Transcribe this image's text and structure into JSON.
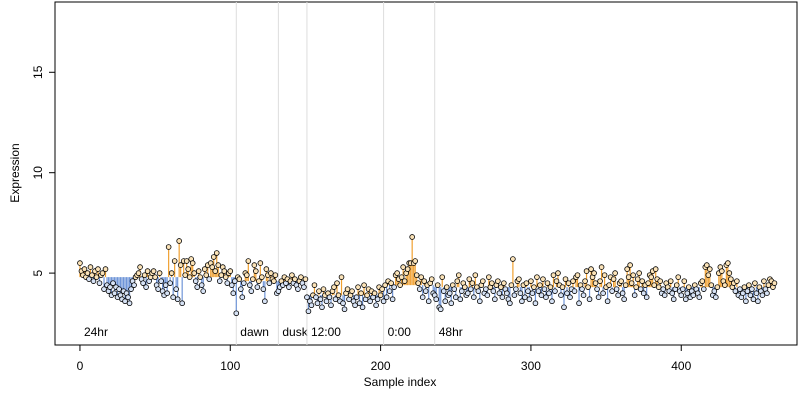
{
  "chart_data": {
    "type": "segmented-scatter",
    "x_label": "Sample index",
    "y_label": "Expression",
    "xlim": [
      -16.6,
      477
    ],
    "ylim": [
      1.42,
      18.5
    ],
    "xticks": [
      0,
      100,
      200,
      300,
      400
    ],
    "yticks": [
      5,
      10,
      15
    ],
    "above_color": "#f0a030",
    "below_color": "#6f95d8",
    "divider_color": "#dddddd",
    "groups": [
      {
        "label": "24hr",
        "start": 0,
        "level": 4.8
      },
      {
        "label": "dawn",
        "start": 104,
        "level": 4.6
      },
      {
        "label": "dusk",
        "start": 132,
        "level": 4.6
      },
      {
        "label": "12:00",
        "start": 151,
        "level": 3.9
      },
      {
        "label": "0:00",
        "start": 202,
        "level": 4.4
      },
      {
        "label": "48hr",
        "start": 236,
        "level": 4.3
      }
    ],
    "values": [
      5.5,
      5.1,
      4.9,
      5.2,
      4.8,
      5.0,
      4.7,
      5.3,
      4.9,
      4.6,
      5.1,
      4.8,
      5.2,
      4.5,
      4.9,
      5.0,
      4.2,
      5.2,
      4.4,
      4.1,
      4.3,
      3.9,
      4.5,
      4.0,
      4.3,
      3.8,
      4.2,
      3.9,
      3.7,
      4.1,
      3.6,
      4.0,
      3.8,
      3.5,
      4.2,
      4.6,
      4.4,
      4.8,
      4.9,
      5.0,
      5.3,
      4.7,
      4.5,
      4.9,
      4.3,
      5.1,
      4.6,
      4.8,
      5.0,
      5.1,
      4.8,
      4.4,
      4.2,
      5.0,
      4.6,
      4.1,
      3.9,
      4.4,
      4.0,
      6.3,
      4.5,
      5.0,
      3.8,
      5.6,
      4.2,
      3.7,
      6.6,
      5.4,
      3.5,
      5.6,
      4.9,
      5.6,
      5.2,
      4.8,
      5.7,
      5.5,
      5.0,
      4.6,
      4.3,
      5.1,
      4.8,
      4.4,
      4.1,
      5.2,
      4.9,
      5.4,
      4.7,
      5.5,
      5.3,
      5.8,
      5.1,
      6.0,
      5.4,
      4.6,
      4.9,
      5.3,
      5.1,
      4.8,
      4.5,
      5.0,
      5.1,
      4.4,
      4.0,
      4.6,
      3.0,
      4.8,
      4.7,
      4.2,
      3.8,
      4.5,
      5.0,
      4.9,
      5.6,
      4.4,
      4.1,
      4.7,
      5.4,
      5.1,
      4.3,
      4.6,
      5.5,
      4.8,
      4.2,
      3.6,
      5.2,
      4.9,
      4.5,
      5.0,
      4.7,
      4.6,
      4.9,
      4.0,
      4.1,
      4.3,
      4.6,
      4.4,
      4.8,
      4.5,
      4.7,
      4.3,
      4.6,
      4.9,
      4.5,
      4.7,
      4.4,
      4.2,
      4.6,
      4.8,
      4.5,
      4.3,
      4.7,
      3.8,
      3.1,
      3.6,
      3.4,
      3.9,
      4.4,
      3.8,
      3.5,
      4.1,
      3.7,
      3.3,
      4.2,
      3.9,
      3.6,
      4.0,
      3.8,
      3.4,
      4.1,
      4.3,
      3.7,
      4.5,
      3.9,
      3.6,
      4.8,
      3.5,
      3.2,
      4.0,
      4.2,
      3.7,
      3.9,
      4.1,
      3.6,
      3.4,
      3.8,
      4.3,
      3.5,
      4.0,
      3.3,
      4.4,
      3.7,
      3.9,
      4.2,
      3.6,
      4.1,
      3.8,
      4.0,
      3.4,
      3.7,
      4.3,
      3.9,
      4.2,
      3.6,
      4.4,
      3.8,
      4.6,
      4.1,
      4.5,
      3.7,
      4.3,
      4.9,
      5.0,
      4.7,
      4.4,
      4.8,
      5.3,
      4.6,
      5.0,
      5.2,
      5.5,
      5.5,
      6.8,
      5.5,
      5.6,
      4.9,
      4.5,
      4.2,
      4.8,
      3.8,
      4.6,
      4.1,
      4.4,
      3.6,
      4.5,
      4.7,
      4.0,
      3.9,
      3.7,
      4.4,
      3.3,
      3.2,
      4.8,
      4.1,
      3.6,
      4.3,
      3.9,
      4.0,
      3.5,
      4.4,
      4.2,
      3.8,
      4.6,
      4.9,
      3.7,
      4.1,
      4.5,
      4.3,
      3.9,
      4.0,
      4.7,
      4.2,
      4.5,
      3.8,
      4.9,
      4.3,
      4.1,
      3.6,
      4.4,
      4.6,
      4.0,
      4.2,
      3.9,
      4.8,
      4.3,
      4.5,
      4.1,
      3.7,
      4.4,
      4.6,
      4.0,
      4.3,
      3.8,
      4.5,
      4.2,
      4.0,
      3.7,
      3.5,
      4.4,
      5.7,
      3.9,
      4.2,
      4.6,
      4.7,
      4.0,
      3.6,
      4.4,
      3.8,
      4.5,
      4.1,
      3.7,
      4.6,
      4.0,
      4.3,
      3.5,
      4.8,
      4.1,
      4.4,
      3.9,
      4.7,
      4.2,
      3.8,
      4.5,
      4.0,
      4.3,
      3.6,
      4.9,
      4.1,
      4.6,
      5.0,
      4.4,
      3.9,
      4.3,
      3.3,
      4.7,
      4.0,
      4.5,
      3.8,
      4.2,
      4.6,
      4.1,
      4.8,
      4.9,
      3.5,
      4.4,
      4.2,
      3.9,
      4.6,
      5.1,
      4.3,
      3.7,
      5.2,
      4.8,
      5.0,
      4.5,
      4.2,
      3.8,
      4.6,
      5.3,
      4.0,
      4.9,
      4.3,
      3.6,
      4.4,
      4.8,
      4.1,
      4.7,
      5.0,
      4.2,
      3.9,
      4.5,
      4.6,
      4.0,
      3.7,
      4.4,
      5.2,
      4.8,
      5.4,
      4.5,
      4.9,
      3.9,
      4.3,
      4.7,
      5.0,
      4.2,
      4.6,
      4.0,
      4.4,
      3.8,
      4.5,
      4.9,
      4.8,
      5.1,
      4.4,
      5.2,
      4.7,
      4.3,
      4.6,
      4.0,
      4.2,
      3.9,
      4.5,
      4.3,
      4.1,
      4.6,
      4.0,
      3.7,
      4.2,
      4.4,
      4.8,
      4.1,
      3.9,
      4.2,
      4.6,
      3.7,
      4.0,
      4.3,
      3.8,
      4.1,
      3.9,
      4.4,
      4.2,
      4.0,
      3.8,
      4.5,
      4.6,
      4.2,
      5.3,
      5.4,
      4.9,
      5.2,
      4.4,
      3.9,
      4.1,
      3.8,
      4.3,
      5.0,
      5.3,
      5.1,
      4.6,
      4.4,
      5.4,
      5.5,
      5.0,
      4.7,
      4.3,
      4.5,
      4.1,
      4.6,
      3.9,
      4.2,
      3.8,
      4.0,
      4.3,
      3.6,
      4.1,
      4.4,
      3.9,
      4.2,
      3.7,
      4.5,
      4.0,
      3.6,
      4.3,
      4.1,
      3.9,
      4.6,
      4.2,
      4.0,
      4.4,
      4.7,
      4.6,
      4.3,
      4.5
    ]
  }
}
